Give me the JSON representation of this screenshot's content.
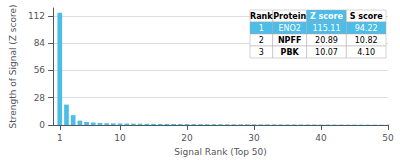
{
  "chart_data": {
    "type": "bar",
    "xlabel": "Signal Rank (Top 50)",
    "ylabel": "Strength of Signal (Z score)",
    "x": [
      1,
      2,
      3,
      4,
      5,
      6,
      7,
      8,
      9,
      10,
      11,
      12,
      13,
      14,
      15,
      16,
      17,
      18,
      19,
      20,
      21,
      22,
      23,
      24,
      25,
      26,
      27,
      28,
      29,
      30,
      31,
      32,
      33,
      34,
      35,
      36,
      37,
      38,
      39,
      40,
      41,
      42,
      43,
      44,
      45,
      46,
      47,
      48,
      49,
      50
    ],
    "values": [
      115.11,
      20.89,
      10.07,
      4.5,
      3.2,
      2.5,
      2.1,
      1.9,
      1.7,
      1.6,
      1.5,
      1.4,
      1.3,
      1.25,
      1.2,
      1.15,
      1.1,
      1.05,
      1.0,
      0.95,
      0.9,
      0.87,
      0.84,
      0.81,
      0.78,
      0.75,
      0.73,
      0.71,
      0.69,
      0.67,
      0.65,
      0.63,
      0.61,
      0.59,
      0.57,
      0.55,
      0.53,
      0.51,
      0.49,
      0.47,
      0.45,
      0.43,
      0.41,
      0.39,
      0.37,
      0.35,
      0.33,
      0.31,
      0.29,
      0.27
    ],
    "color": "#4BBDE8",
    "xlim": [
      0,
      50
    ],
    "xticks": [
      1,
      10,
      20,
      30,
      40,
      50
    ],
    "ylim": [
      0,
      120
    ],
    "yticks": [
      0,
      28,
      56,
      84,
      112
    ],
    "grid": true,
    "table": {
      "header": [
        "Rank",
        "Protein",
        "Z score",
        "S score"
      ],
      "rows": [
        [
          "1",
          "ENO2",
          "115.11",
          "94.22"
        ],
        [
          "2",
          "NPFF",
          "20.89",
          "10.82"
        ],
        [
          "3",
          "PBK",
          "10.07",
          "4.10"
        ]
      ],
      "highlight_row": 1,
      "highlight_column": "Z score",
      "highlight_color": "#4BBDE8"
    }
  }
}
